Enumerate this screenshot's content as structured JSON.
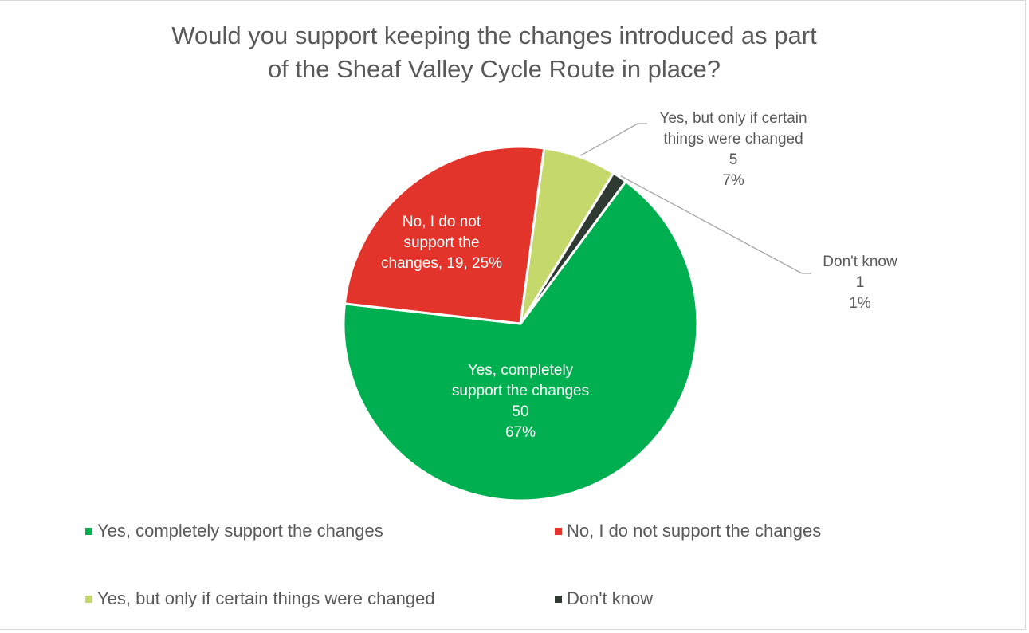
{
  "chart_data": {
    "type": "pie",
    "title_lines": [
      "Would you support keeping the changes introduced as part",
      "of the Sheaf Valley Cycle Route in place?"
    ],
    "slices": [
      {
        "name": "Yes, completely support the changes",
        "value": 50,
        "percent": "67%",
        "color": "#00b050",
        "label_lines": [
          "Yes, completely",
          "support the changes",
          "50",
          "67%"
        ]
      },
      {
        "name": "No, I do not support the changes",
        "value": 19,
        "percent": "25%",
        "color": "#e3342b",
        "label_lines": [
          "No, I do not",
          "support the",
          "changes, 19, 25%"
        ]
      },
      {
        "name": "Yes, but only if certain things were changed",
        "value": 5,
        "percent": "7%",
        "color": "#c4d86b",
        "label_lines": [
          "Yes, but only if certain",
          "things were changed",
          "5",
          "7%"
        ]
      },
      {
        "name": "Don't know",
        "value": 1,
        "percent": "1%",
        "color": "#2f3a33",
        "label_lines": [
          "Don't know",
          "1",
          "1%"
        ]
      }
    ],
    "legend_position": "bottom",
    "legend": [
      "Yes, completely support the changes",
      "No, I do not support the changes",
      "Yes, but only if certain things were changed",
      "Don't know"
    ]
  }
}
